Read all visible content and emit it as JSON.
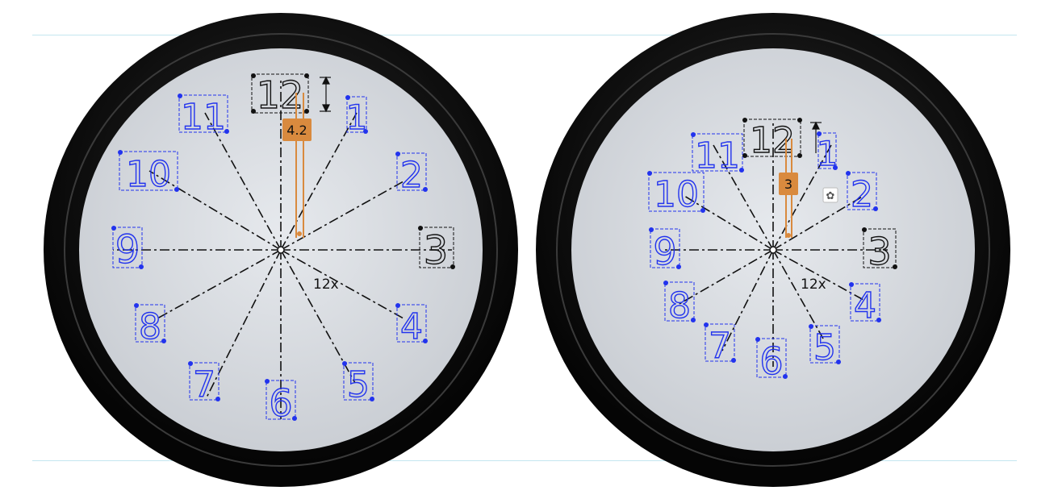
{
  "colors": {
    "frame": "#0a0a0a",
    "face": "#d9dde2",
    "constraint_blue": "#2233ee",
    "selected_black": "#111111",
    "dimension_orange": "#d98a3e"
  },
  "clocks": [
    {
      "id": "left",
      "numerals": [
        "12",
        "1",
        "2",
        "3",
        "4",
        "5",
        "6",
        "7",
        "8",
        "9",
        "10",
        "11"
      ],
      "dimension_value": "4.2",
      "pattern_label": "12x"
    },
    {
      "id": "right",
      "numerals": [
        "12",
        "1",
        "2",
        "3",
        "4",
        "5",
        "6",
        "7",
        "8",
        "9",
        "10",
        "11"
      ],
      "dimension_value": "3",
      "pattern_label": "12x",
      "edit_icon": "gear-icon"
    }
  ]
}
